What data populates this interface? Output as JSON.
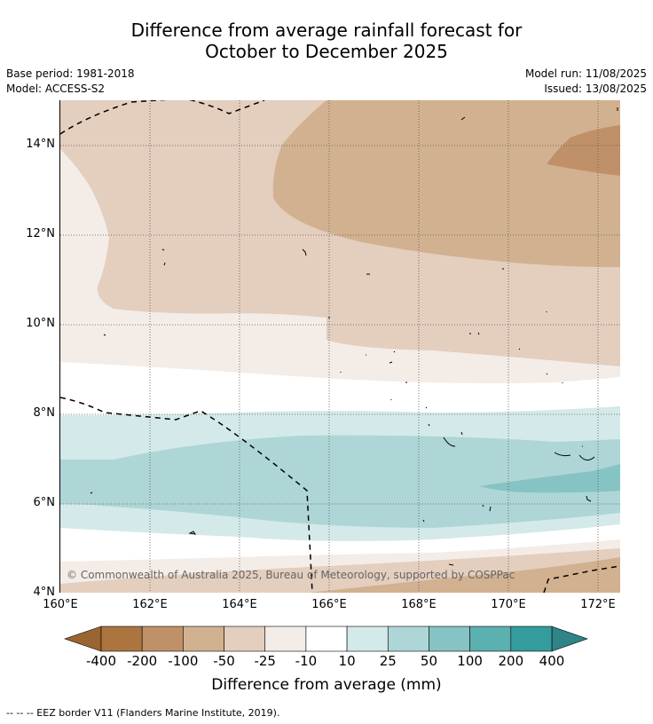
{
  "title": {
    "line1": "Difference from average rainfall forecast for",
    "line2": "October to December 2025"
  },
  "meta": {
    "base_period": "Base period: 1981-2018",
    "model": "Model: ACCESS-S2",
    "model_run": "Model run: 11/08/2025",
    "issued": "Issued: 13/08/2025"
  },
  "axes": {
    "y_ticks": [
      "14°N",
      "12°N",
      "10°N",
      "8°N",
      "6°N",
      "4°N"
    ],
    "x_ticks": [
      "160°E",
      "162°E",
      "164°E",
      "166°E",
      "168°E",
      "170°E",
      "172°E"
    ]
  },
  "copyright": "© Commonwealth of Australia 2025, Bureau of Meteorology, supported by COSPPac",
  "colorbar": {
    "labels": [
      "-400",
      "-200",
      "-100",
      "-50",
      "-25",
      "-10",
      "10",
      "25",
      "50",
      "100",
      "200",
      "400"
    ],
    "colors": [
      "#ac7540",
      "#c09168",
      "#d2b190",
      "#e4cebe",
      "#f4ece7",
      "#ffffff",
      "#d4e9e9",
      "#aed6d6",
      "#86c3c4",
      "#5bb0b0",
      "#349c9c"
    ],
    "under_color": "#9a6530",
    "over_color": "#2e8486",
    "title": "Difference from average (mm)"
  },
  "legend_note": "--  --  -- EEZ border V11 (Flanders Marine Institute, 2019)."
}
